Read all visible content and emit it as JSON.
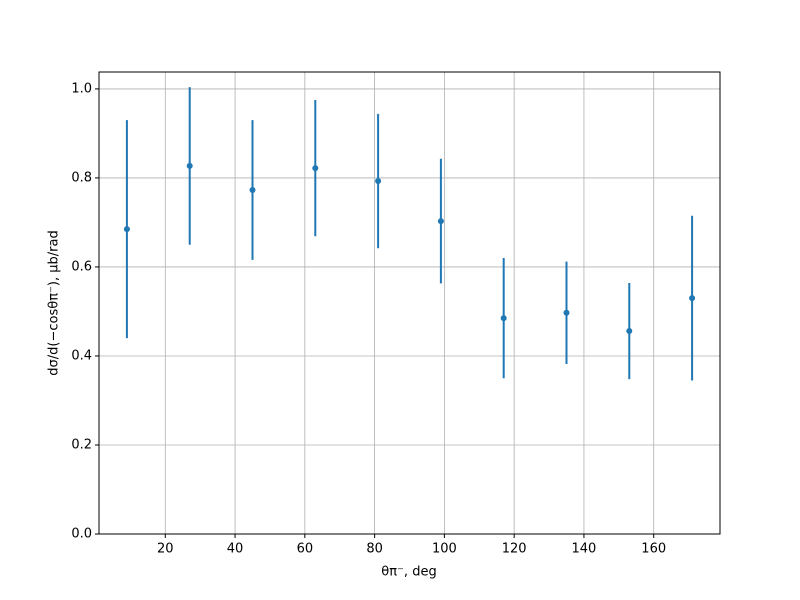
{
  "chart_data": {
    "type": "errorbar",
    "xlabel": "θπ⁻, deg",
    "ylabel": "dσ/d(−cosθπ⁻), μb/rad",
    "x": [
      9,
      27,
      45,
      63,
      81,
      99,
      117,
      135,
      153,
      171
    ],
    "series": [
      {
        "color": "#1f77b4",
        "values": [
          0.685,
          0.827,
          0.773,
          0.822,
          0.793,
          0.703,
          0.485,
          0.497,
          0.456,
          0.53
        ],
        "errors": [
          0.245,
          0.177,
          0.157,
          0.153,
          0.151,
          0.14,
          0.135,
          0.115,
          0.108,
          0.185
        ]
      }
    ],
    "xlim": [
      1,
      179
    ],
    "ylim": [
      0,
      1.038
    ],
    "xticks": [
      20,
      40,
      60,
      80,
      100,
      120,
      140,
      160
    ],
    "yticks": [
      {
        "value": 0,
        "label": "0.0"
      },
      {
        "value": 0.2,
        "label": "0.2"
      },
      {
        "value": 0.4,
        "label": "0.4"
      },
      {
        "value": 0.6,
        "label": "0.6"
      },
      {
        "value": 0.8,
        "label": "0.8"
      },
      {
        "value": 1,
        "label": "1.0"
      }
    ],
    "grid": true
  }
}
